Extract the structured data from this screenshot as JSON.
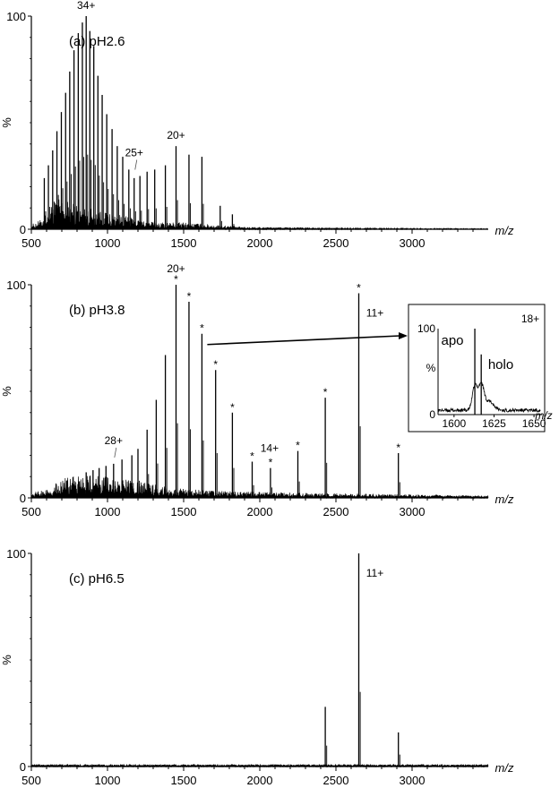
{
  "figure": {
    "x_axis_label": "m/z",
    "y_axis_label": "%",
    "x_ticks": [
      "500",
      "1000",
      "1500",
      "2000",
      "2500",
      "3000"
    ],
    "y_ticks": [
      "0",
      "100"
    ]
  },
  "chart_data": [
    {
      "type": "line",
      "title": "(a) pH2.6",
      "xlabel": "m/z",
      "ylabel": "%",
      "xlim": [
        500,
        3500
      ],
      "ylim": [
        0,
        100
      ],
      "peaks": [
        [
          585,
          24
        ],
        [
          612,
          30
        ],
        [
          640,
          37
        ],
        [
          668,
          46
        ],
        [
          697,
          55
        ],
        [
          725,
          64
        ],
        [
          752,
          74
        ],
        [
          780,
          84
        ],
        [
          808,
          92
        ],
        [
          835,
          97
        ],
        [
          860,
          100
        ],
        [
          884,
          93
        ],
        [
          910,
          86
        ],
        [
          937,
          72
        ],
        [
          965,
          63
        ],
        [
          995,
          54
        ],
        [
          1030,
          47
        ],
        [
          1064,
          39
        ],
        [
          1100,
          34
        ],
        [
          1140,
          28
        ],
        [
          1175,
          24
        ],
        [
          1213,
          25
        ],
        [
          1260,
          27
        ],
        [
          1310,
          28
        ],
        [
          1380,
          30
        ],
        [
          1450,
          39
        ],
        [
          1535,
          35
        ],
        [
          1620,
          34
        ],
        [
          1740,
          11
        ],
        [
          1820,
          7
        ]
      ],
      "baseline_noise": [
        [
          500,
          2
        ],
        [
          560,
          4
        ],
        [
          620,
          10
        ],
        [
          680,
          13
        ],
        [
          740,
          12
        ],
        [
          820,
          10
        ],
        [
          900,
          9
        ],
        [
          1000,
          7
        ],
        [
          1100,
          6
        ],
        [
          1200,
          4
        ],
        [
          1350,
          3
        ],
        [
          1500,
          3
        ],
        [
          1700,
          2
        ],
        [
          1900,
          1
        ],
        [
          2200,
          0.8
        ],
        [
          2600,
          0.5
        ],
        [
          3500,
          0.3
        ]
      ],
      "annotations": [
        {
          "text": "34+",
          "x": 860,
          "y": 100
        },
        {
          "text": "25+",
          "x": 1175,
          "y": 25
        },
        {
          "text": "20+",
          "x": 1450,
          "y": 39
        }
      ]
    },
    {
      "type": "line",
      "title": "(b) pH3.8",
      "xlabel": "m/z",
      "ylabel": "%",
      "xlim": [
        500,
        3500
      ],
      "ylim": [
        0,
        100
      ],
      "peaks": [
        [
          860,
          12
        ],
        [
          905,
          13
        ],
        [
          945,
          14
        ],
        [
          990,
          15
        ],
        [
          1040,
          16
        ],
        [
          1095,
          18
        ],
        [
          1160,
          20
        ],
        [
          1200,
          23
        ],
        [
          1260,
          32
        ],
        [
          1320,
          46
        ],
        [
          1380,
          67
        ],
        [
          1450,
          100
        ],
        [
          1535,
          92
        ],
        [
          1620,
          77
        ],
        [
          1710,
          60
        ],
        [
          1820,
          40
        ],
        [
          1950,
          17
        ],
        [
          2070,
          14
        ],
        [
          2250,
          22
        ],
        [
          2430,
          47
        ],
        [
          2650,
          96
        ],
        [
          2910,
          21
        ]
      ],
      "star_peaks": [
        1450,
        1535,
        1620,
        1710,
        1820,
        1950,
        2070,
        2250,
        2430,
        2650,
        2910
      ],
      "baseline_noise": [
        [
          500,
          2
        ],
        [
          600,
          4
        ],
        [
          700,
          8
        ],
        [
          800,
          10
        ],
        [
          900,
          10
        ],
        [
          1000,
          9
        ],
        [
          1100,
          8
        ],
        [
          1200,
          7
        ],
        [
          1300,
          6
        ],
        [
          1400,
          5
        ],
        [
          1500,
          4
        ],
        [
          1700,
          3
        ],
        [
          2000,
          2.5
        ],
        [
          2400,
          2
        ],
        [
          3000,
          1.5
        ],
        [
          3500,
          1
        ]
      ],
      "annotations": [
        {
          "text": "20+",
          "x": 1450,
          "y": 100
        },
        {
          "text": "28+",
          "x": 1040,
          "y": 16
        },
        {
          "text": "14+",
          "x": 2070,
          "y": 14
        },
        {
          "text": "11+",
          "x": 2650,
          "y": 96
        }
      ],
      "inset": {
        "label": "18+",
        "xlim": [
          1590,
          1655
        ],
        "ylim": [
          0,
          100
        ],
        "x_ticks": [
          "1600",
          "1625",
          "1650"
        ],
        "y_ticks": [
          "0",
          "100"
        ],
        "apo_label": "apo",
        "holo_label": "holo",
        "apo_mz": 1613,
        "apo_intensity": 100,
        "holo_mz": 1617,
        "holo_intensity": 70
      }
    },
    {
      "type": "line",
      "title": "(c) pH6.5",
      "xlabel": "m/z",
      "ylabel": "%",
      "xlim": [
        500,
        3500
      ],
      "ylim": [
        0,
        100
      ],
      "peaks": [
        [
          2430,
          28
        ],
        [
          2650,
          100
        ],
        [
          2910,
          16
        ]
      ],
      "baseline_noise": [
        [
          500,
          1
        ],
        [
          3500,
          1
        ]
      ],
      "annotations": [
        {
          "text": "11+",
          "x": 2650,
          "y": 100
        }
      ]
    }
  ]
}
